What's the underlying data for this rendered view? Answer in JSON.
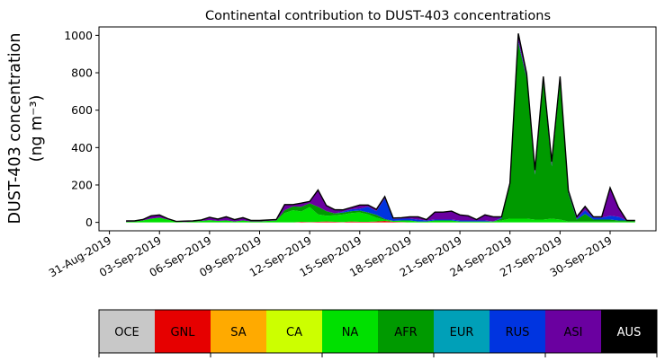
{
  "chart_data": {
    "type": "area",
    "title": "Continental contribution to DUST-403 concentrations",
    "ylabel_line1": "DUST-403 concentration",
    "ylabel_line2": "(ng m⁻³)",
    "ylim": [
      -45,
      1045
    ],
    "yticks": [
      0,
      200,
      400,
      600,
      800,
      1000
    ],
    "xticks": [
      {
        "date": "2019-08-31",
        "label": "31-Aug-2019"
      },
      {
        "date": "2019-09-03",
        "label": "03-Sep-2019"
      },
      {
        "date": "2019-09-06",
        "label": "06-Sep-2019"
      },
      {
        "date": "2019-09-09",
        "label": "09-Sep-2019"
      },
      {
        "date": "2019-09-12",
        "label": "12-Sep-2019"
      },
      {
        "date": "2019-09-15",
        "label": "15-Sep-2019"
      },
      {
        "date": "2019-09-18",
        "label": "18-Sep-2019"
      },
      {
        "date": "2019-09-21",
        "label": "21-Sep-2019"
      },
      {
        "date": "2019-09-24",
        "label": "24-Sep-2019"
      },
      {
        "date": "2019-09-27",
        "label": "27-Sep-2019"
      },
      {
        "date": "2019-09-30",
        "label": "30-Sep-2019"
      }
    ],
    "xlim": [
      "2019-08-30T09:00",
      "2019-10-02T18:00"
    ],
    "x": [
      "2019-09-01T00:00",
      "2019-09-01T12:00",
      "2019-09-02T00:00",
      "2019-09-02T12:00",
      "2019-09-03T00:00",
      "2019-09-03T12:00",
      "2019-09-04T00:00",
      "2019-09-04T12:00",
      "2019-09-05T00:00",
      "2019-09-05T12:00",
      "2019-09-06T00:00",
      "2019-09-06T12:00",
      "2019-09-07T00:00",
      "2019-09-07T12:00",
      "2019-09-08T00:00",
      "2019-09-08T12:00",
      "2019-09-09T00:00",
      "2019-09-09T12:00",
      "2019-09-10T00:00",
      "2019-09-10T12:00",
      "2019-09-11T00:00",
      "2019-09-11T12:00",
      "2019-09-12T00:00",
      "2019-09-12T12:00",
      "2019-09-13T00:00",
      "2019-09-13T12:00",
      "2019-09-14T00:00",
      "2019-09-14T12:00",
      "2019-09-15T00:00",
      "2019-09-15T12:00",
      "2019-09-16T00:00",
      "2019-09-16T12:00",
      "2019-09-17T00:00",
      "2019-09-17T12:00",
      "2019-09-18T00:00",
      "2019-09-18T12:00",
      "2019-09-19T00:00",
      "2019-09-19T12:00",
      "2019-09-20T00:00",
      "2019-09-20T12:00",
      "2019-09-21T00:00",
      "2019-09-21T12:00",
      "2019-09-22T00:00",
      "2019-09-22T12:00",
      "2019-09-23T00:00",
      "2019-09-23T12:00",
      "2019-09-24T00:00",
      "2019-09-24T12:00",
      "2019-09-25T00:00",
      "2019-09-25T12:00",
      "2019-09-26T00:00",
      "2019-09-26T12:00",
      "2019-09-27T00:00",
      "2019-09-27T12:00",
      "2019-09-28T00:00",
      "2019-09-28T12:00",
      "2019-09-29T00:00",
      "2019-09-29T12:00",
      "2019-09-30T00:00",
      "2019-09-30T12:00",
      "2019-10-01T00:00",
      "2019-10-01T12:00"
    ],
    "series": [
      {
        "name": "OCE",
        "color": "#c8c8c8",
        "values": [
          0,
          0,
          0,
          0,
          0,
          0,
          0,
          0,
          0,
          0,
          0,
          0,
          0,
          0,
          0,
          0,
          0,
          0,
          0,
          0,
          0,
          0,
          0,
          0,
          0,
          0,
          0,
          0,
          0,
          0,
          0,
          0,
          0,
          0,
          0,
          0,
          0,
          0,
          0,
          0,
          0,
          0,
          0,
          0,
          0,
          0,
          0,
          0,
          0,
          0,
          0,
          0,
          0,
          0,
          0,
          0,
          0,
          0,
          0,
          0,
          0,
          0
        ]
      },
      {
        "name": "GNL",
        "color": "#e60000",
        "values": [
          0,
          0,
          0,
          0,
          0,
          0,
          0,
          0,
          0,
          0,
          0,
          0,
          0,
          0,
          0,
          0,
          0,
          0,
          0,
          0,
          0,
          3,
          2,
          3,
          5,
          3,
          2,
          5,
          3,
          3,
          5,
          8,
          3,
          2,
          0,
          0,
          0,
          0,
          0,
          0,
          0,
          0,
          0,
          0,
          0,
          0,
          0,
          0,
          0,
          0,
          0,
          0,
          0,
          0,
          0,
          0,
          0,
          0,
          0,
          0,
          0,
          0
        ]
      },
      {
        "name": "SA",
        "color": "#ffaa00",
        "values": [
          0,
          0,
          0,
          0,
          0,
          0,
          0,
          0,
          0,
          0,
          0,
          0,
          0,
          0,
          0,
          0,
          0,
          0,
          0,
          0,
          0,
          0,
          0,
          0,
          0,
          0,
          0,
          0,
          0,
          0,
          0,
          0,
          0,
          0,
          0,
          0,
          0,
          0,
          0,
          0,
          0,
          0,
          0,
          0,
          0,
          0,
          0,
          0,
          0,
          0,
          0,
          0,
          0,
          0,
          0,
          0,
          0,
          0,
          0,
          0,
          0,
          0
        ]
      },
      {
        "name": "CA",
        "color": "#ccff00",
        "values": [
          0,
          0,
          0,
          0,
          0,
          0,
          0,
          0,
          0,
          0,
          0,
          0,
          0,
          0,
          0,
          0,
          0,
          0,
          0,
          0,
          0,
          0,
          0,
          0,
          0,
          0,
          0,
          0,
          0,
          0,
          0,
          0,
          0,
          0,
          0,
          0,
          0,
          0,
          0,
          0,
          0,
          0,
          0,
          0,
          0,
          0,
          0,
          0,
          0,
          0,
          0,
          0,
          0,
          0,
          0,
          0,
          0,
          0,
          0,
          0,
          0,
          0
        ]
      },
      {
        "name": "NA",
        "color": "#00e000",
        "values": [
          3,
          5,
          10,
          20,
          25,
          15,
          5,
          2,
          5,
          8,
          12,
          8,
          10,
          5,
          10,
          5,
          5,
          8,
          10,
          50,
          65,
          55,
          80,
          40,
          30,
          35,
          40,
          45,
          50,
          40,
          20,
          5,
          5,
          8,
          10,
          5,
          5,
          10,
          10,
          10,
          5,
          5,
          5,
          5,
          5,
          10,
          20,
          20,
          20,
          15,
          15,
          20,
          15,
          5,
          5,
          5,
          5,
          5,
          5,
          5,
          5,
          5
        ]
      },
      {
        "name": "AFR",
        "color": "#009a00",
        "values": [
          0,
          0,
          0,
          0,
          0,
          0,
          0,
          0,
          0,
          0,
          0,
          0,
          0,
          0,
          0,
          0,
          0,
          0,
          0,
          15,
          20,
          25,
          20,
          40,
          25,
          10,
          10,
          10,
          10,
          10,
          15,
          5,
          0,
          0,
          0,
          0,
          0,
          0,
          0,
          0,
          0,
          0,
          0,
          0,
          0,
          10,
          180,
          940,
          750,
          240,
          740,
          280,
          740,
          150,
          10,
          40,
          10,
          10,
          10,
          5,
          5,
          5
        ]
      },
      {
        "name": "EUR",
        "color": "#00a0b8",
        "values": [
          0,
          0,
          0,
          0,
          0,
          0,
          0,
          0,
          0,
          0,
          0,
          0,
          0,
          0,
          0,
          0,
          0,
          0,
          0,
          0,
          0,
          0,
          0,
          0,
          0,
          0,
          0,
          0,
          0,
          0,
          0,
          0,
          0,
          0,
          0,
          0,
          0,
          0,
          0,
          0,
          0,
          0,
          0,
          0,
          0,
          0,
          0,
          0,
          0,
          0,
          0,
          0,
          0,
          0,
          0,
          0,
          0,
          0,
          0,
          0,
          0,
          0
        ]
      },
      {
        "name": "RUS",
        "color": "#0034e0",
        "values": [
          0,
          0,
          0,
          0,
          0,
          0,
          0,
          0,
          0,
          0,
          0,
          0,
          0,
          0,
          0,
          0,
          0,
          0,
          0,
          0,
          0,
          0,
          0,
          0,
          0,
          0,
          5,
          10,
          10,
          30,
          20,
          110,
          10,
          10,
          10,
          10,
          5,
          5,
          5,
          5,
          5,
          5,
          5,
          5,
          0,
          5,
          5,
          10,
          5,
          5,
          5,
          5,
          5,
          5,
          5,
          20,
          10,
          10,
          20,
          20,
          0,
          0
        ]
      },
      {
        "name": "ASI",
        "color": "#6a00a0",
        "values": [
          5,
          3,
          5,
          15,
          15,
          5,
          0,
          5,
          3,
          5,
          15,
          10,
          20,
          10,
          15,
          5,
          5,
          5,
          5,
          30,
          10,
          20,
          10,
          90,
          30,
          20,
          10,
          10,
          20,
          10,
          10,
          10,
          5,
          5,
          10,
          15,
          5,
          40,
          40,
          45,
          30,
          25,
          5,
          30,
          25,
          5,
          5,
          40,
          20,
          20,
          20,
          20,
          20,
          10,
          10,
          20,
          5,
          5,
          150,
          50,
          0,
          0
        ]
      },
      {
        "name": "AUS",
        "color": "#000000",
        "values": [
          0,
          0,
          0,
          0,
          0,
          0,
          0,
          0,
          0,
          0,
          0,
          0,
          0,
          0,
          0,
          0,
          0,
          0,
          0,
          0,
          0,
          0,
          0,
          0,
          0,
          0,
          0,
          0,
          0,
          0,
          0,
          0,
          0,
          0,
          0,
          0,
          0,
          0,
          0,
          0,
          0,
          0,
          0,
          0,
          0,
          0,
          0,
          0,
          0,
          0,
          0,
          0,
          0,
          0,
          0,
          0,
          0,
          0,
          0,
          0,
          0,
          0
        ]
      }
    ],
    "colorbar": {
      "labels": [
        "OCE",
        "GNL",
        "SA",
        "CA",
        "NA",
        "AFR",
        "EUR",
        "RUS",
        "ASI",
        "AUS"
      ],
      "colors": [
        "#c8c8c8",
        "#e60000",
        "#ffaa00",
        "#ccff00",
        "#00e000",
        "#009a00",
        "#00a0b8",
        "#0034e0",
        "#6a00a0",
        "#000000"
      ],
      "text_colors": [
        "#000000",
        "#000000",
        "#000000",
        "#000000",
        "#000000",
        "#000000",
        "#000000",
        "#000000",
        "#000000",
        "#ffffff"
      ]
    },
    "legend_placement": "bottom",
    "grid": false
  }
}
